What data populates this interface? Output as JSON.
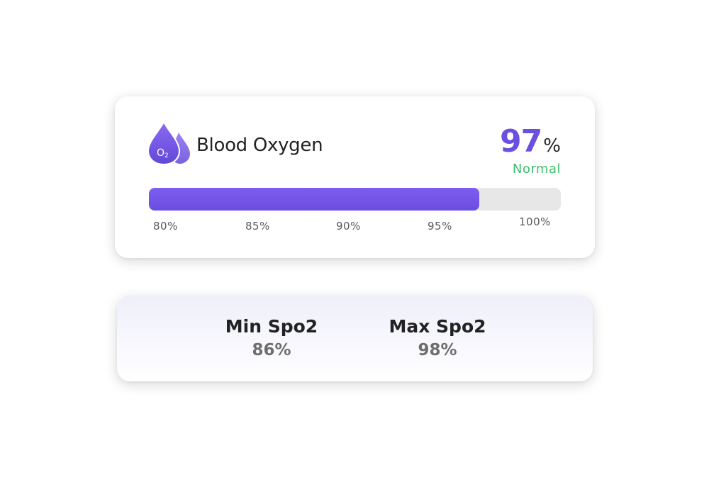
{
  "oxygen_card": {
    "title": "Blood Oxygen",
    "icon": "oxygen-drop-icon",
    "icon_text": "O2",
    "value": "97",
    "unit": "%",
    "status": "Normal",
    "accent_color": "#6c4fe0",
    "status_color": "#3cc16a",
    "progress": {
      "min": 80,
      "max": 100,
      "value": 97,
      "ticks": [
        "80%",
        "85%",
        "90%",
        "95%",
        "100%"
      ]
    }
  },
  "stats_card": {
    "min": {
      "label": "Min Spo2",
      "value": "86%"
    },
    "max": {
      "label": "Max Spo2",
      "value": "98%"
    }
  }
}
